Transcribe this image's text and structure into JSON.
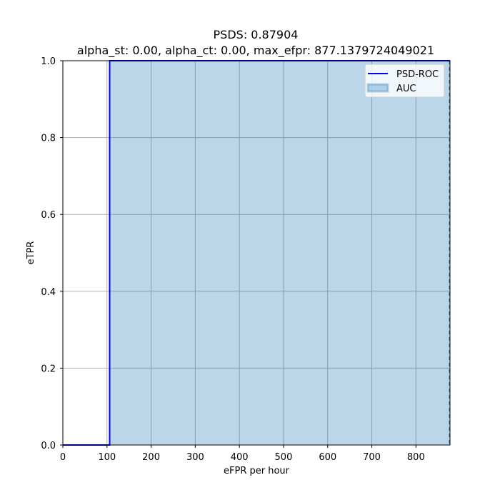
{
  "chart_data": {
    "type": "line",
    "title": "PSDS: 0.87904",
    "subtitle": "alpha_st: 0.00, alpha_ct: 0.00, max_efpr: 877.1379724049021",
    "xlabel": "eFPR per hour",
    "ylabel": "eTPR",
    "xlim": [
      0,
      877.1379724049021
    ],
    "ylim": [
      0,
      1
    ],
    "xticks": [
      0,
      100,
      200,
      300,
      400,
      500,
      600,
      700,
      800
    ],
    "xtick_labels": [
      "0",
      "100",
      "200",
      "300",
      "400",
      "500",
      "600",
      "700",
      "800"
    ],
    "yticks": [
      0,
      0.2,
      0.4,
      0.6,
      0.8,
      1.0
    ],
    "ytick_labels": [
      "0.0",
      "0.2",
      "0.4",
      "0.6",
      "0.8",
      "1.0"
    ],
    "grid": true,
    "legend_position": "top-right",
    "series": [
      {
        "name": "PSD-ROC",
        "kind": "line",
        "color": "#0000ff",
        "x": [
          0,
          106,
          106,
          877.1379724049021
        ],
        "y": [
          0,
          0,
          1,
          1
        ]
      },
      {
        "name": "AUC",
        "kind": "area",
        "color": "#1f77b4",
        "opacity": 0.3,
        "x": [
          106,
          877.1379724049021
        ],
        "y": [
          1,
          1
        ]
      }
    ],
    "reference_line": {
      "x": 877.1379724049021,
      "style": "dashed",
      "color": "#1f77b4"
    }
  }
}
